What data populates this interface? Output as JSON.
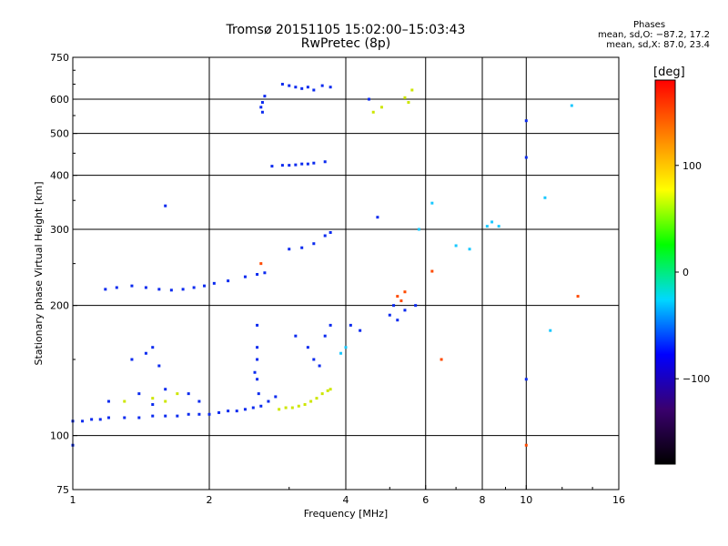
{
  "header": {
    "title": "Tromsø 20151105 15:02:00–15:03:43",
    "subtitle": "RwPretec (8p)"
  },
  "phases": {
    "heading": "Phases",
    "line_o": "mean, sd,O: −87.2, 17.2",
    "line_x": "mean, sd,X:  87.0, 23.4"
  },
  "colorbar": {
    "unit": "[deg]",
    "ticks": [
      "100",
      "0",
      "−100"
    ],
    "tick_values": [
      100,
      0,
      -100
    ],
    "range": [
      -180,
      180
    ],
    "colors": [
      "#000000",
      "#3a006e",
      "#0000ff",
      "#00d8ff",
      "#00ff00",
      "#ffff00",
      "#ff8000",
      "#ff0000"
    ]
  },
  "chart_data": {
    "type": "scatter",
    "title": "Tromsø 20151105 15:02:00–15:03:43",
    "subtitle": "RwPretec (8p)",
    "xlabel": "Frequency [MHz]",
    "ylabel": "Stationary phase Virtual Height [km]",
    "xscale": "log",
    "yscale": "log",
    "xlim": [
      1,
      16
    ],
    "ylim": [
      75,
      750
    ],
    "grid": true,
    "x_ticks": [
      {
        "value": 1,
        "label": "1"
      },
      {
        "value": 2,
        "label": "2"
      },
      {
        "value": 4,
        "label": "4"
      },
      {
        "value": 6,
        "label": "6"
      },
      {
        "value": 8,
        "label": "8"
      },
      {
        "value": 10,
        "label": "10"
      },
      {
        "value": 16,
        "label": "16"
      }
    ],
    "x_grid": [
      2,
      4,
      6,
      8,
      10
    ],
    "y_ticks": [
      {
        "value": 75,
        "label": "75"
      },
      {
        "value": 100,
        "label": "100"
      },
      {
        "value": 200,
        "label": "200"
      },
      {
        "value": 300,
        "label": "300"
      },
      {
        "value": 400,
        "label": "400"
      },
      {
        "value": 500,
        "label": "500"
      },
      {
        "value": 600,
        "label": "600"
      },
      {
        "value": 750,
        "label": "750"
      }
    ],
    "y_grid": [
      100,
      200,
      300,
      400,
      500,
      600
    ],
    "series": [
      {
        "points": [
          [
            1.0,
            108
          ],
          [
            1.05,
            108
          ],
          [
            1.1,
            109
          ],
          [
            1.15,
            109
          ],
          [
            1.2,
            110
          ],
          [
            1.3,
            110
          ],
          [
            1.4,
            110
          ],
          [
            1.5,
            111
          ],
          [
            1.6,
            111
          ],
          [
            1.7,
            111
          ],
          [
            1.8,
            112
          ],
          [
            1.9,
            112
          ],
          [
            2.0,
            112
          ],
          [
            2.1,
            113
          ],
          [
            2.2,
            114
          ],
          [
            2.3,
            114
          ],
          [
            2.4,
            115
          ],
          [
            2.5,
            116
          ],
          [
            2.6,
            117
          ],
          [
            2.7,
            120
          ],
          [
            2.8,
            123
          ],
          [
            1.18,
            218
          ],
          [
            1.25,
            220
          ],
          [
            1.35,
            222
          ],
          [
            1.45,
            220
          ],
          [
            1.55,
            218
          ],
          [
            1.65,
            217
          ],
          [
            1.75,
            218
          ],
          [
            1.85,
            220
          ],
          [
            1.95,
            222
          ],
          [
            2.05,
            225
          ],
          [
            2.2,
            228
          ],
          [
            2.4,
            233
          ],
          [
            2.55,
            236
          ],
          [
            2.65,
            238
          ],
          [
            2.55,
            180
          ],
          [
            2.55,
            160
          ],
          [
            2.55,
            150
          ],
          [
            2.52,
            140
          ],
          [
            2.55,
            135
          ],
          [
            2.57,
            125
          ],
          [
            2.62,
            590
          ],
          [
            2.6,
            575
          ],
          [
            2.62,
            560
          ],
          [
            2.65,
            610
          ],
          [
            2.9,
            650
          ],
          [
            3.0,
            645
          ],
          [
            3.1,
            640
          ],
          [
            3.2,
            635
          ],
          [
            3.3,
            640
          ],
          [
            3.4,
            630
          ],
          [
            3.55,
            645
          ],
          [
            3.7,
            640
          ],
          [
            2.75,
            420
          ],
          [
            2.9,
            422
          ],
          [
            3.0,
            422
          ],
          [
            3.1,
            423
          ],
          [
            3.2,
            425
          ],
          [
            3.3,
            425
          ],
          [
            3.4,
            427
          ],
          [
            3.6,
            430
          ],
          [
            3.0,
            270
          ],
          [
            3.2,
            272
          ],
          [
            3.4,
            278
          ],
          [
            3.6,
            290
          ],
          [
            3.7,
            295
          ],
          [
            3.1,
            170
          ],
          [
            3.3,
            160
          ],
          [
            3.4,
            150
          ],
          [
            3.5,
            145
          ],
          [
            3.6,
            170
          ],
          [
            3.7,
            180
          ],
          [
            1.6,
            340
          ],
          [
            1.0,
            95
          ],
          [
            4.1,
            180
          ],
          [
            4.3,
            175
          ],
          [
            4.5,
            600
          ],
          [
            4.7,
            320
          ],
          [
            5.0,
            190
          ],
          [
            5.1,
            200
          ],
          [
            5.2,
            185
          ],
          [
            5.4,
            195
          ],
          [
            5.7,
            200
          ],
          [
            1.2,
            120
          ],
          [
            1.4,
            125
          ],
          [
            1.5,
            118
          ],
          [
            1.6,
            128
          ],
          [
            1.8,
            125
          ],
          [
            1.9,
            120
          ],
          [
            1.35,
            150
          ],
          [
            1.45,
            155
          ],
          [
            1.55,
            145
          ],
          [
            1.5,
            160
          ],
          [
            10.0,
            535
          ],
          [
            10.0,
            440
          ],
          [
            10.0,
            135
          ]
        ]
      },
      {
        "points": [
          [
            2.85,
            115
          ],
          [
            2.95,
            116
          ],
          [
            3.05,
            116
          ],
          [
            3.15,
            117
          ],
          [
            3.25,
            118
          ],
          [
            3.35,
            120
          ],
          [
            3.45,
            122
          ],
          [
            3.55,
            125
          ],
          [
            3.65,
            127
          ],
          [
            3.7,
            128
          ],
          [
            4.6,
            560
          ],
          [
            4.8,
            575
          ],
          [
            5.4,
            605
          ],
          [
            5.6,
            630
          ],
          [
            5.5,
            590
          ],
          [
            1.5,
            122
          ],
          [
            1.6,
            120
          ],
          [
            1.7,
            125
          ],
          [
            1.3,
            120
          ]
        ]
      },
      {
        "points": [
          [
            5.8,
            300
          ],
          [
            6.2,
            345
          ],
          [
            7.0,
            275
          ],
          [
            7.5,
            270
          ],
          [
            8.2,
            305
          ],
          [
            8.4,
            312
          ],
          [
            8.7,
            305
          ],
          [
            11.0,
            355
          ],
          [
            12.6,
            580
          ],
          [
            11.3,
            175
          ],
          [
            4.0,
            160
          ],
          [
            3.9,
            155
          ]
        ]
      },
      {
        "points": [
          [
            5.2,
            210
          ],
          [
            5.4,
            215
          ],
          [
            6.5,
            150
          ],
          [
            6.2,
            240
          ],
          [
            2.6,
            250
          ],
          [
            13.0,
            210
          ],
          [
            10.0,
            95
          ],
          [
            5.3,
            205
          ]
        ]
      }
    ]
  }
}
